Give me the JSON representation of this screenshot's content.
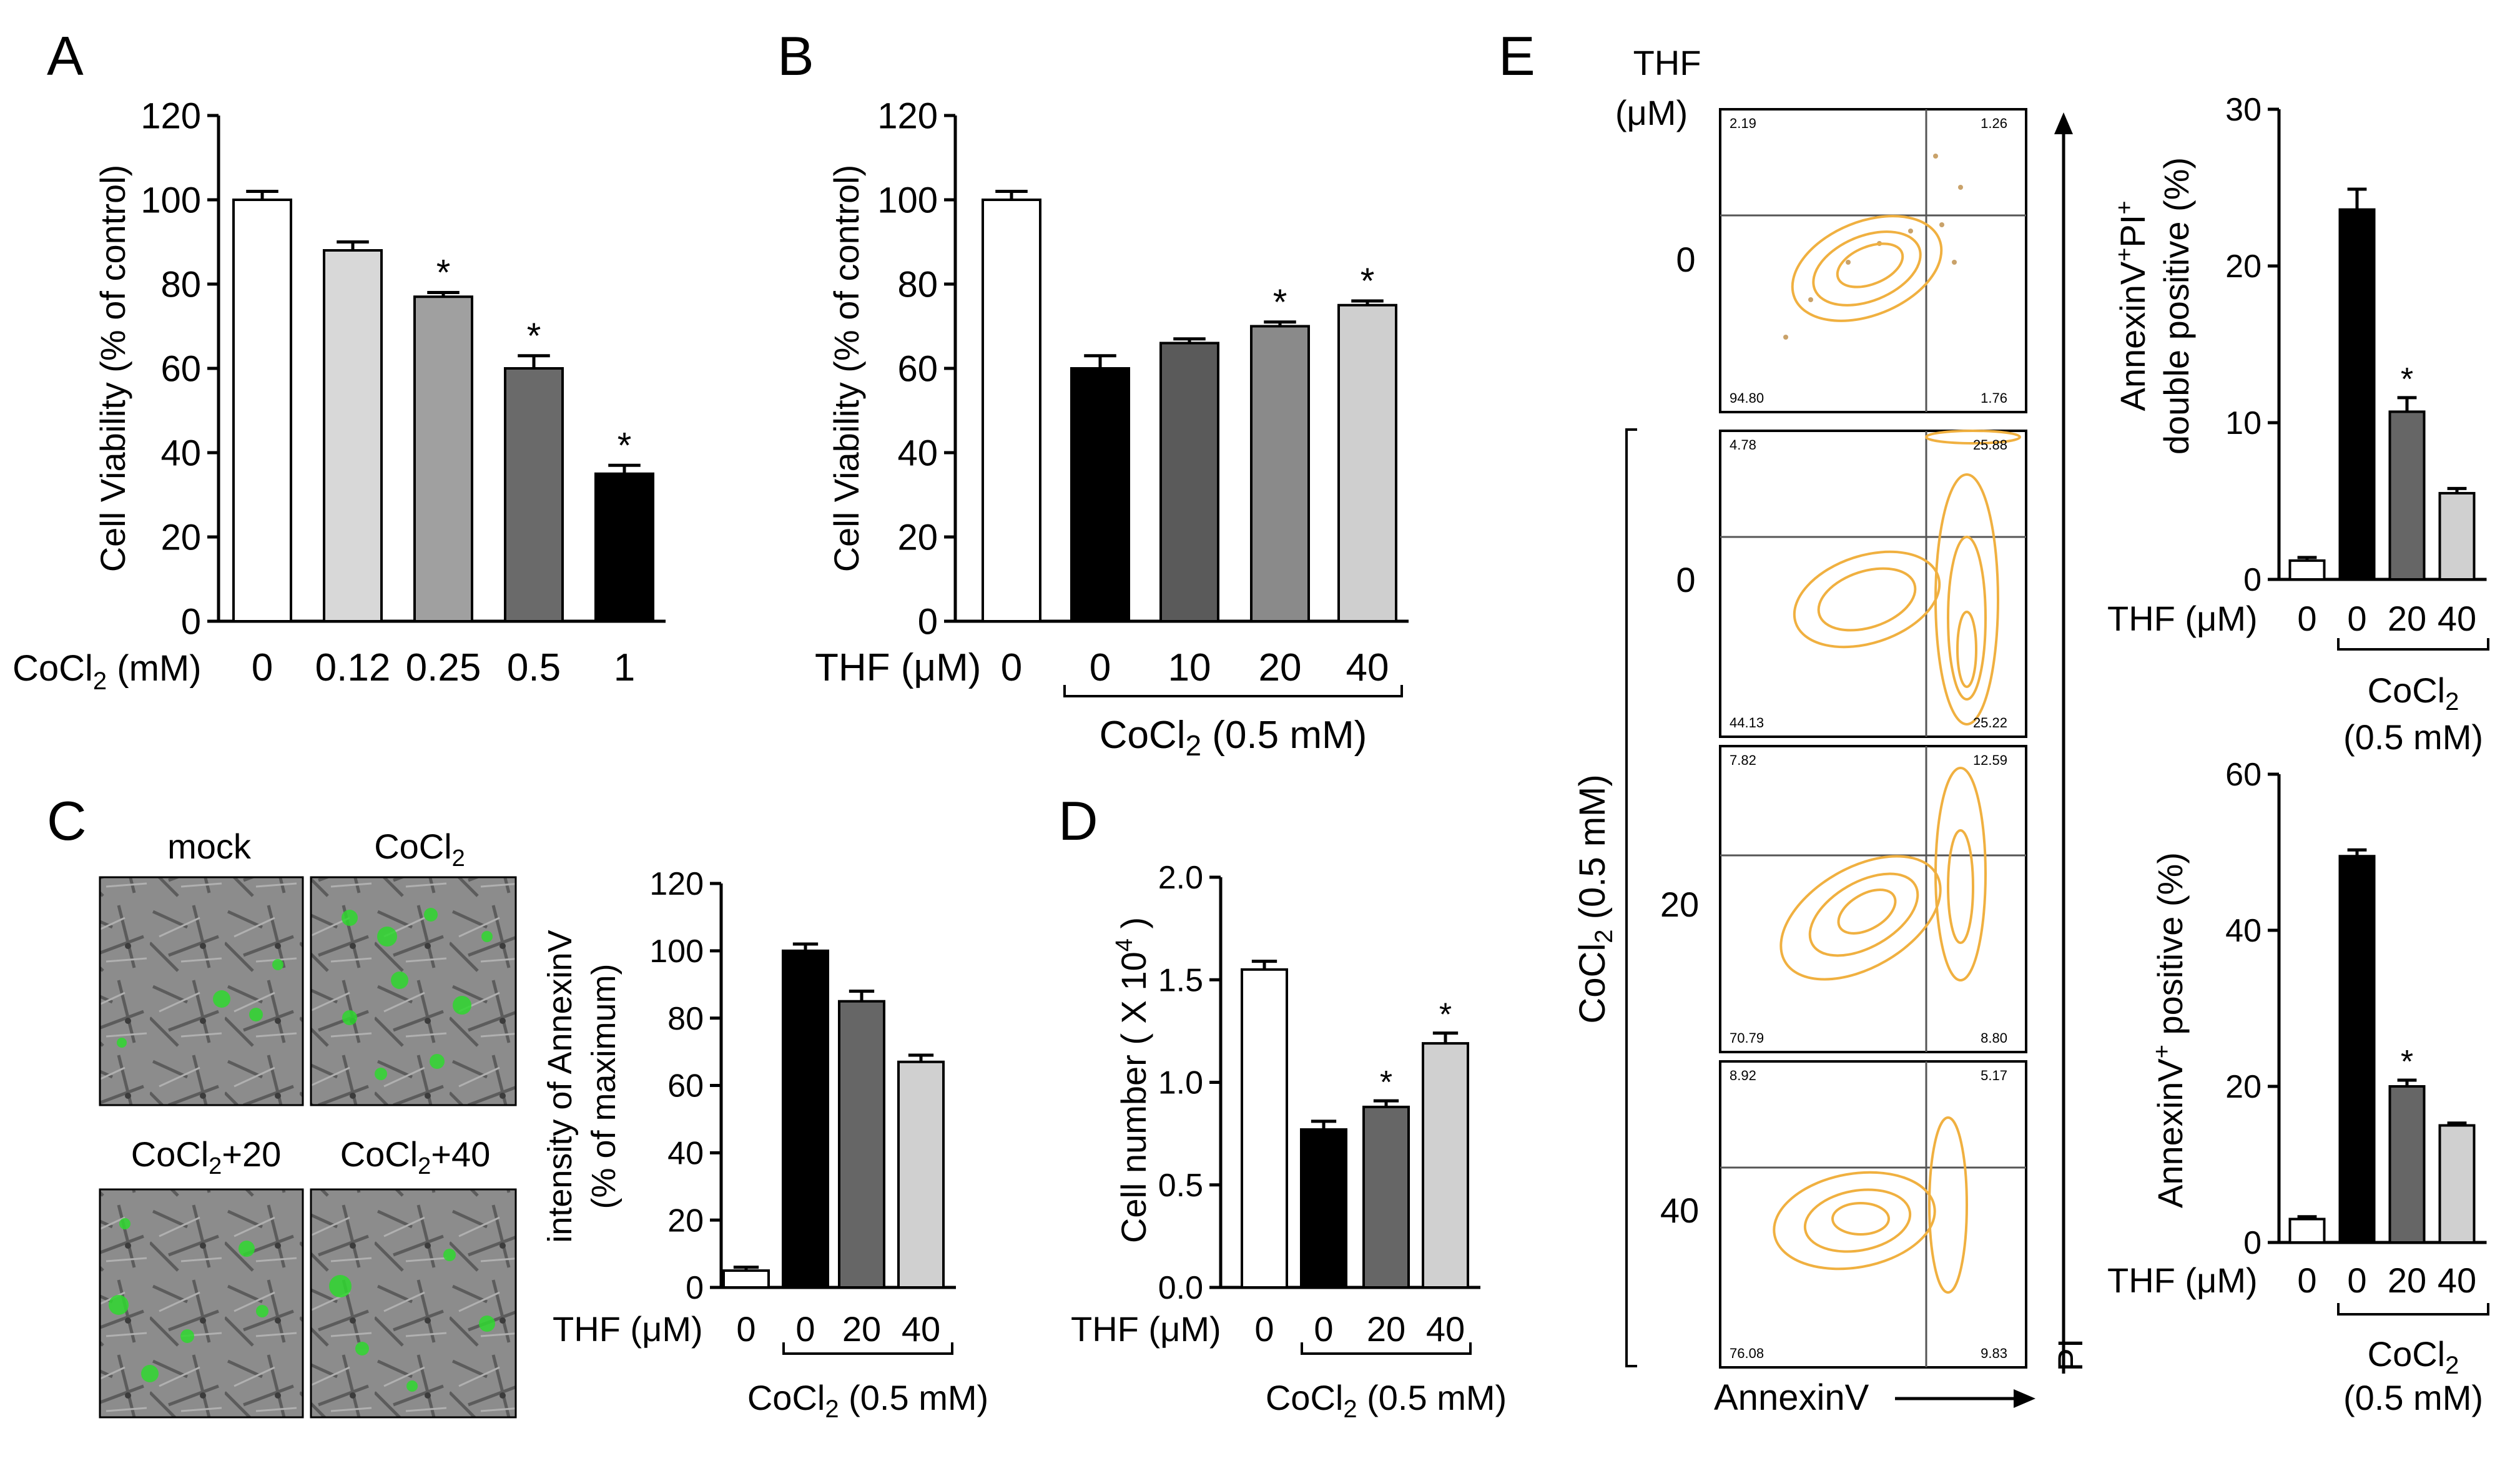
{
  "panel_letters": [
    "A",
    "B",
    "C",
    "D",
    "E"
  ],
  "micro": {
    "mock": "mock",
    "cocl2": "CoCl",
    "c20": "CoCl",
    "c40": "CoCl",
    "plus20": "+20",
    "plus40": "+40"
  },
  "flow": {
    "thf_title": [
      "THF",
      "(μM)"
    ],
    "rows": [
      "0",
      "0",
      "20",
      "40"
    ],
    "cocl2_vertical": "CoCl",
    "cocl2_vertical_b": "(0.5 mM)",
    "x_axis": "AnnexinV",
    "y_axis": "PI",
    "quadrants": [
      [
        "2.19",
        "1.26",
        "94.80",
        "1.76"
      ],
      [
        "4.78",
        "25.88",
        "44.13",
        "25.22"
      ],
      [
        "7.82",
        "12.59",
        "70.79",
        "8.80"
      ],
      [
        "8.92",
        "5.17",
        "76.08",
        "9.83"
      ]
    ]
  },
  "chart_data": [
    {
      "id": "A",
      "type": "bar",
      "ylabel": "Cell Viability (% of control)",
      "xlabel_lead": "CoCl",
      "xlabel_tail": " (mM)",
      "categories": [
        "0",
        "0.12",
        "0.25",
        "0.5",
        "1"
      ],
      "values": [
        100,
        88,
        77,
        60,
        35
      ],
      "errors": [
        2,
        2,
        1,
        3,
        2
      ],
      "significant": [
        false,
        false,
        true,
        true,
        true
      ],
      "colors": [
        "#ffffff",
        "#d8d8d8",
        "#a0a0a0",
        "#6a6a6a",
        "#000000"
      ],
      "ylim": [
        0,
        120
      ],
      "yticks": [
        "0",
        "20",
        "40",
        "60",
        "80",
        "100",
        "120"
      ]
    },
    {
      "id": "B",
      "type": "bar",
      "ylabel": "Cell Viability (% of control)",
      "xlabel": "THF (μM)",
      "categories": [
        "0",
        "0",
        "10",
        "20",
        "40"
      ],
      "values": [
        100,
        60,
        66,
        70,
        75
      ],
      "errors": [
        2,
        3,
        1,
        1,
        1
      ],
      "significant": [
        false,
        false,
        false,
        true,
        true
      ],
      "colors": [
        "#ffffff",
        "#000000",
        "#5a5a5a",
        "#8a8a8a",
        "#cfcfcf"
      ],
      "ylim": [
        0,
        120
      ],
      "yticks": [
        "0",
        "20",
        "40",
        "60",
        "80",
        "100",
        "120"
      ],
      "group_lead": "CoCl",
      "group_tail": " (0.5 mM)"
    },
    {
      "id": "C",
      "type": "bar",
      "ylabel": [
        "intensity of AnnexinV",
        "(% of maximum)"
      ],
      "xlabel": "THF (μM)",
      "categories": [
        "0",
        "0",
        "20",
        "40"
      ],
      "values": [
        5,
        100,
        85,
        67
      ],
      "errors": [
        1,
        2,
        3,
        2
      ],
      "significant": [
        false,
        false,
        false,
        false
      ],
      "colors": [
        "#ffffff",
        "#000000",
        "#666666",
        "#d0d0d0"
      ],
      "ylim": [
        0,
        120
      ],
      "yticks": [
        "0",
        "20",
        "40",
        "60",
        "80",
        "100",
        "120"
      ],
      "group_lead": "CoCl",
      "group_tail": " (0.5 mM)"
    },
    {
      "id": "D",
      "type": "bar",
      "ylabel": "Cell number ( X 10",
      "ylabel_sup": "4",
      "ylabel_end": ")",
      "xlabel": "THF (μM)",
      "categories": [
        "0",
        "0",
        "20",
        "40"
      ],
      "values": [
        1.55,
        0.77,
        0.88,
        1.19
      ],
      "errors": [
        0.04,
        0.04,
        0.03,
        0.05
      ],
      "significant": [
        false,
        false,
        true,
        true
      ],
      "colors": [
        "#ffffff",
        "#000000",
        "#666666",
        "#d0d0d0"
      ],
      "ylim": [
        0,
        2.0
      ],
      "yticks": [
        "0.0",
        "0.5",
        "1.0",
        "1.5",
        "2.0"
      ],
      "group_lead": "CoCl",
      "group_tail": " (0.5 mM)"
    },
    {
      "id": "E1",
      "type": "bar",
      "ylabel_top": "AnnexinV",
      "ylabel_mid": "PI",
      "ylabel_line2": "double positive (%)",
      "xlabel": "THF (μM)",
      "categories": [
        "0",
        "0",
        "20",
        "40"
      ],
      "values": [
        1.2,
        23.6,
        10.7,
        5.5
      ],
      "errors": [
        0.2,
        1.3,
        0.9,
        0.3
      ],
      "significant": [
        false,
        false,
        true,
        false
      ],
      "colors": [
        "#ffffff",
        "#000000",
        "#666666",
        "#d0d0d0"
      ],
      "ylim": [
        0,
        30
      ],
      "yticks": [
        "0",
        "10",
        "20",
        "30"
      ],
      "group_lead": "CoCl",
      "group_tail": "(0.5 mM)"
    },
    {
      "id": "E2",
      "type": "bar",
      "ylabel_top": "AnnexinV",
      "ylabel_line2": " positive (%)",
      "xlabel": "THF (μM)",
      "categories": [
        "0",
        "0",
        "20",
        "40"
      ],
      "values": [
        3,
        49.5,
        20,
        15
      ],
      "errors": [
        0.3,
        0.8,
        0.8,
        0.3
      ],
      "significant": [
        false,
        false,
        true,
        false
      ],
      "colors": [
        "#ffffff",
        "#000000",
        "#666666",
        "#d0d0d0"
      ],
      "ylim": [
        0,
        60
      ],
      "yticks": [
        "0",
        "20",
        "40",
        "60"
      ],
      "group_lead": "CoCl",
      "group_tail": "(0.5 mM)"
    }
  ]
}
